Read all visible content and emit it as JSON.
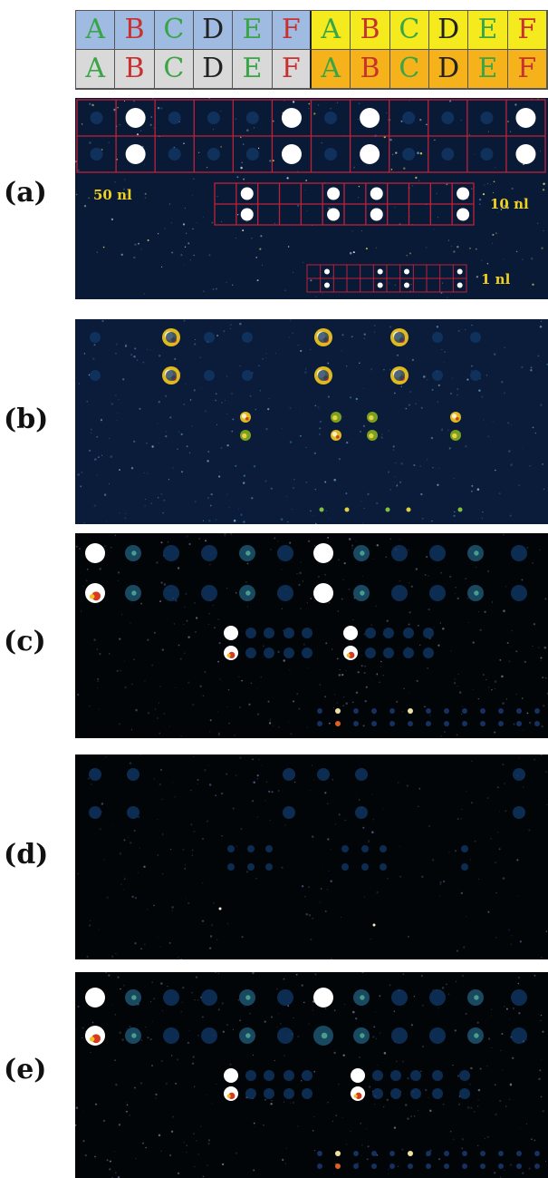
{
  "legend": {
    "letters": [
      "A",
      "B",
      "C",
      "D",
      "E",
      "F"
    ],
    "row_top_colors_left": "#9fbbe2",
    "row_top_colors_right": "#f4ea1e",
    "row_bottom_colors_left": "#d9d9d9",
    "row_bottom_colors_right": "#f6b21b",
    "letter_colors": [
      "#3aa547",
      "#c8312f",
      "#3aa547",
      "#222222",
      "#3aa547",
      "#c8312f"
    ]
  },
  "panels": [
    {
      "label": "(a)",
      "volume_labels": [
        "50 nl",
        "10 nl",
        "1 nl"
      ]
    },
    {
      "label": "(b)"
    },
    {
      "label": "(c)"
    },
    {
      "label": "(d)"
    },
    {
      "label": "(e)"
    }
  ],
  "colors": {
    "panel_bg_a": "#081a36",
    "panel_bg_b": "#0a1c3a",
    "panel_bg_dark": "#020508",
    "grid_line": "#c0203a",
    "volume_text": "#f0d020"
  }
}
